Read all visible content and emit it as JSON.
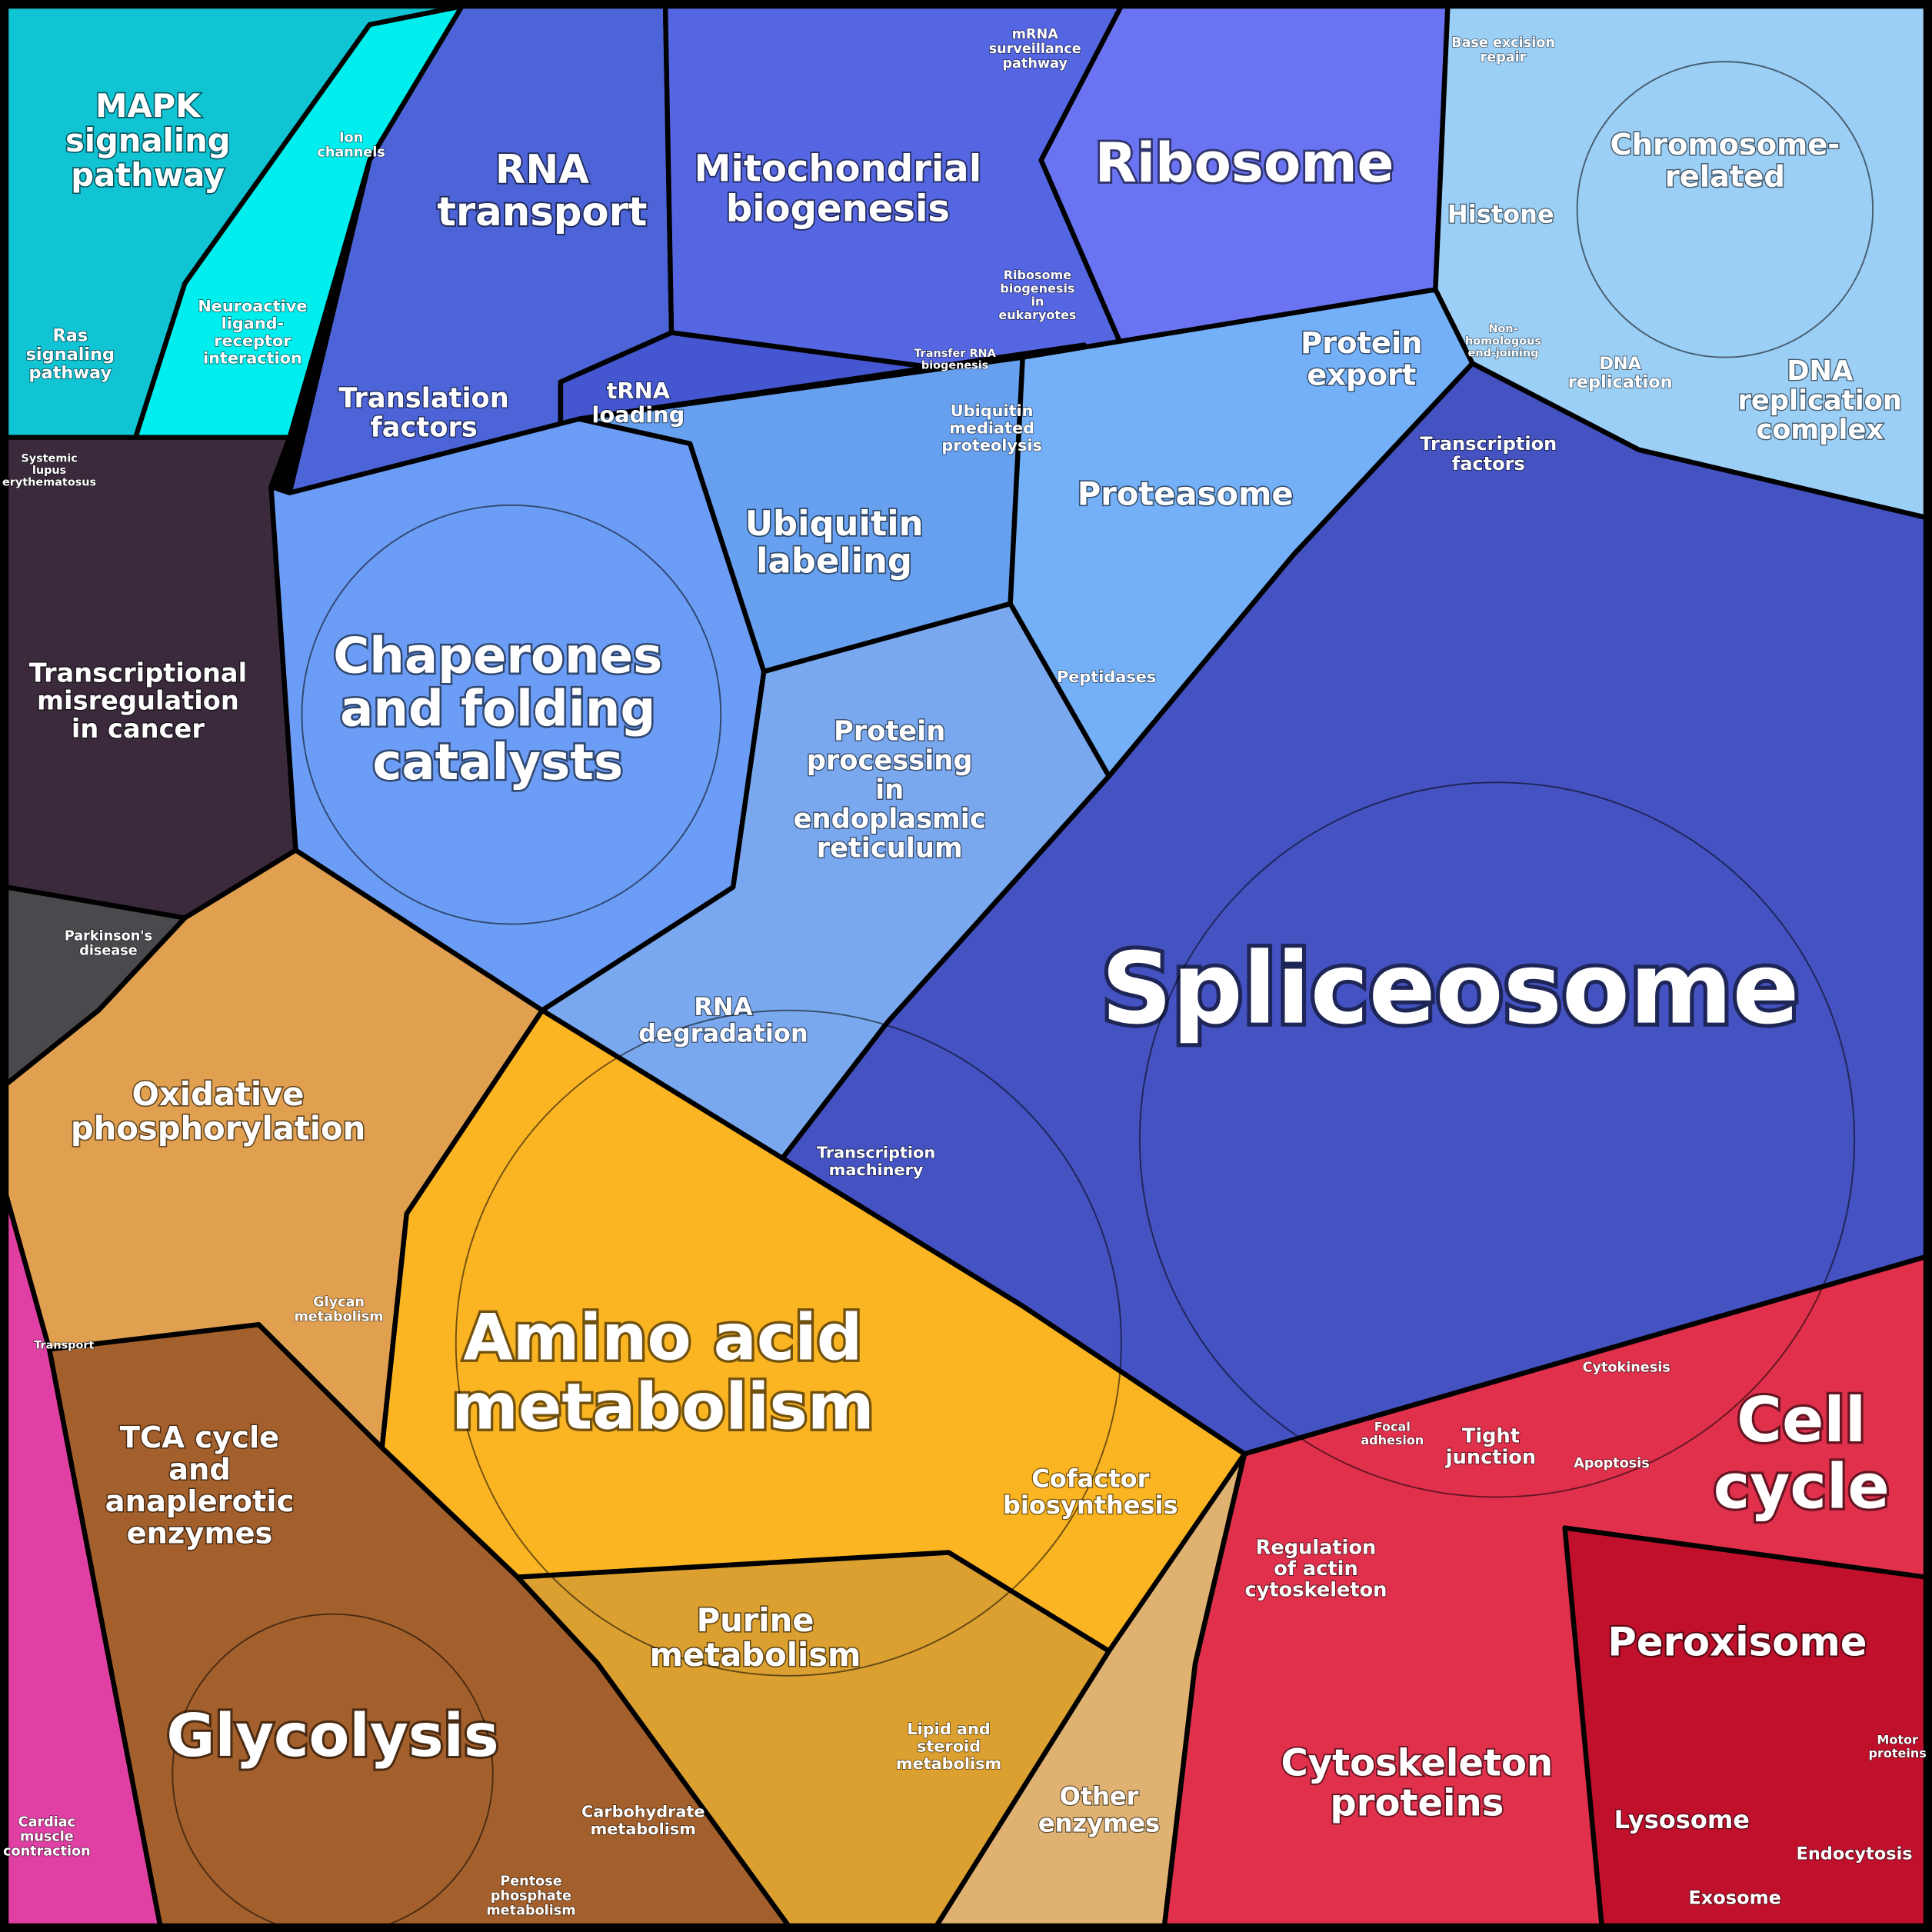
{
  "labels": [
    {
      "lines": [
        "MAPK",
        "signaling",
        "pathway"
      ]
    },
    {
      "lines": [
        "RNA",
        "transport"
      ]
    },
    {
      "lines": [
        "Mitochondrial",
        "biogenesis"
      ]
    },
    {
      "lines": [
        "Ribosome"
      ]
    },
    {
      "lines": [
        "Chromosome-",
        "related"
      ]
    },
    {
      "lines": [
        "Histone"
      ]
    },
    {
      "lines": [
        "Base excision",
        "repair"
      ]
    },
    {
      "lines": [
        "mRNA",
        "surveillance",
        "pathway"
      ]
    },
    {
      "lines": [
        "Translation",
        "factors"
      ]
    },
    {
      "lines": [
        "tRNA",
        "loading"
      ]
    },
    {
      "lines": [
        "Ribosome",
        "biogenesis",
        "in",
        "eukaryotes"
      ]
    },
    {
      "lines": [
        "Transfer RNA",
        "biogenesis"
      ]
    },
    {
      "lines": [
        "Protein",
        "export"
      ]
    },
    {
      "lines": [
        "Non-",
        "homologous",
        "end-joining"
      ]
    },
    {
      "lines": [
        "DNA",
        "replication"
      ]
    },
    {
      "lines": [
        "DNA",
        "replication",
        "complex"
      ]
    },
    {
      "lines": [
        "Transcription",
        "factors"
      ]
    },
    {
      "lines": [
        "Ubiquitin",
        "mediated",
        "proteolysis"
      ]
    },
    {
      "lines": [
        "Proteasome"
      ]
    },
    {
      "lines": [
        "Ubiquitin",
        "labeling"
      ]
    },
    {
      "lines": [
        "Chaperones",
        "and folding",
        "catalysts"
      ]
    },
    {
      "lines": [
        "Peptidases"
      ]
    },
    {
      "lines": [
        "Protein",
        "processing",
        "in",
        "endoplasmic",
        "reticulum"
      ]
    },
    {
      "lines": [
        "Transcriptional",
        "misregulation",
        "in cancer"
      ]
    },
    {
      "lines": [
        "Systemic",
        "lupus",
        "erythematosus"
      ]
    },
    {
      "lines": [
        "Parkinson's",
        "disease"
      ]
    },
    {
      "lines": [
        "Spliceosome"
      ]
    },
    {
      "lines": [
        "RNA",
        "degradation"
      ]
    },
    {
      "lines": [
        "Transcription",
        "machinery"
      ]
    },
    {
      "lines": [
        "Oxidative",
        "phosphorylation"
      ]
    },
    {
      "lines": [
        "Amino acid",
        "metabolism"
      ]
    },
    {
      "lines": [
        "Glycan",
        "metabolism"
      ]
    },
    {
      "lines": [
        "Cofactor",
        "biosynthesis"
      ]
    },
    {
      "lines": [
        "TCA cycle",
        "and",
        "anaplerotic",
        "enzymes"
      ]
    },
    {
      "lines": [
        "Purine",
        "metabolism"
      ]
    },
    {
      "lines": [
        "Glycolysis"
      ]
    },
    {
      "lines": [
        "Carbohydrate",
        "metabolism"
      ]
    },
    {
      "lines": [
        "Lipid and",
        "steroid",
        "metabolism"
      ]
    },
    {
      "lines": [
        "Pentose",
        "phosphate",
        "metabolism"
      ]
    },
    {
      "lines": [
        "Other",
        "enzymes"
      ]
    },
    {
      "lines": [
        "Cell",
        "cycle"
      ]
    },
    {
      "lines": [
        "Tight",
        "junction"
      ]
    },
    {
      "lines": [
        "Cytokinesis"
      ]
    },
    {
      "lines": [
        "Apoptosis"
      ]
    },
    {
      "lines": [
        "Focal",
        "adhesion"
      ]
    },
    {
      "lines": [
        "Regulation",
        "of actin",
        "cytoskeleton"
      ]
    },
    {
      "lines": [
        "Peroxisome"
      ]
    },
    {
      "lines": [
        "Cytoskeleton",
        "proteins"
      ]
    },
    {
      "lines": [
        "Lysosome"
      ]
    },
    {
      "lines": [
        "Endocytosis"
      ]
    },
    {
      "lines": [
        "Exosome"
      ]
    },
    {
      "lines": [
        "Motor",
        "proteins"
      ]
    },
    {
      "lines": [
        "Cardiac",
        "muscle",
        "contraction"
      ]
    },
    {
      "lines": [
        "Ion",
        "channels"
      ]
    },
    {
      "lines": [
        "Neuroactive",
        "ligand-",
        "receptor",
        "interaction"
      ]
    },
    {
      "lines": [
        "Ras",
        "signaling",
        "pathway"
      ]
    },
    {
      "lines": [
        "Transport"
      ]
    }
  ]
}
